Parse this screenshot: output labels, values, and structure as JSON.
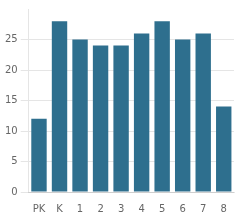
{
  "chart_data": {
    "type": "bar",
    "categories": [
      "PK",
      "K",
      "1",
      "2",
      "3",
      "4",
      "5",
      "6",
      "7",
      "8"
    ],
    "values": [
      12,
      28,
      25,
      24,
      24,
      26,
      28,
      25,
      26,
      14
    ],
    "color": "#2e6f8e",
    "ylim": [
      0,
      30
    ],
    "yticks": [
      0,
      5,
      10,
      15,
      20,
      25
    ],
    "grid": true
  }
}
